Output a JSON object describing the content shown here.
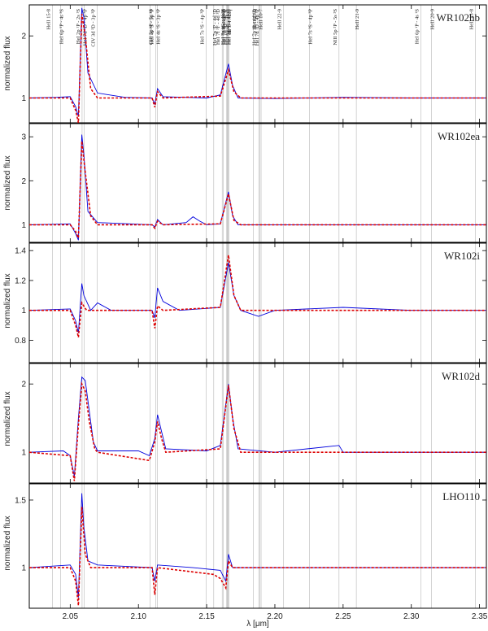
{
  "figure": {
    "x_axis_label": "λ [μm]",
    "y_axis_label": "normalized flux",
    "x_ticks": [
      "2.05",
      "2.10",
      "2.15",
      "2.20",
      "2.25",
      "2.30",
      "2.35"
    ]
  },
  "line_ids": [
    {
      "label": "HeII 15-8",
      "x": 2.037
    },
    {
      "label": "HeI 6p ³P - 4s ³S",
      "x": 2.043
    },
    {
      "label": "HeI 2p ¹P - 2s ¹S",
      "x": 2.0587
    },
    {
      "label": "HeI 7d ³D - 4p ³P",
      "x": 2.0602
    },
    {
      "label": "CIV 3d ²D - 3p ²P",
      "x": 2.0698
    },
    {
      "label": "CIII 5p ¹P - 5s ¹S",
      "x": 2.1084
    },
    {
      "label": "HeI 4s ³S - 3p ³P",
      "x": 2.1126
    },
    {
      "label": "HeI 4s ¹S - 3p ¹P",
      "x": 2.1138
    },
    {
      "label": "HeI 7s ³S - 4p ³P",
      "x": 2.1497
    },
    {
      "label": "HeI 7p ¹P - 4d ¹D",
      "x": 2.1552
    },
    {
      "label": "HeI 7f ³F - 4d ³D",
      "x": 2.1614
    },
    {
      "label": "HeI 7f ¹F - 4d ¹D",
      "x": 2.1623
    },
    {
      "label": "HeI 7g ³G - 4f ³F",
      "x": 2.1647
    },
    {
      "label": "HeI 7g ¹G - 4f ¹F",
      "x": 2.1652
    },
    {
      "label": "HeII 14-8",
      "x": 2.1653
    },
    {
      "label": "HeI 7d ³D - 4f ³F",
      "x": 2.1658
    },
    {
      "label": "HeI 7d ¹D - 4f ¹F",
      "x": 2.1662
    },
    {
      "label": "HI 7-4 / Brγ",
      "x": 2.1661
    },
    {
      "label": "HeII 23-9",
      "x": 2.1882
    },
    {
      "label": "HeI 7p ¹P - 4d ¹D",
      "x": 2.1843
    },
    {
      "label": "HeI 7d ¹D - 4p ¹P",
      "x": 2.1899
    },
    {
      "label": "HeII 10-7",
      "x": 2.1891
    },
    {
      "label": "HeII 22-9",
      "x": 2.2064
    },
    {
      "label": "HeI 7s ³S - 4p ³P",
      "x": 2.2253
    },
    {
      "label": "NIII 5p ²P - 5s ²S",
      "x": 2.247
    },
    {
      "label": "HeII 21-9",
      "x": 2.2597
    },
    {
      "label": "HeI 6p ¹P - 4s ¹S",
      "x": 2.3069
    },
    {
      "label": "HeII 20-9",
      "x": 2.3147
    },
    {
      "label": "HeII 13-8",
      "x": 2.347
    }
  ],
  "chart_data": [
    {
      "type": "line",
      "title": "WR102hb",
      "xlim": [
        2.02,
        2.355
      ],
      "ylim": [
        0.6,
        2.5
      ],
      "y_ticks": [
        1,
        2
      ],
      "series": [
        {
          "color": "#0000dd",
          "values": [
            [
              2.02,
              1.0
            ],
            [
              2.04,
              1.01
            ],
            [
              2.05,
              1.02
            ],
            [
              2.054,
              0.86
            ],
            [
              2.056,
              0.7
            ],
            [
              2.0585,
              2.45
            ],
            [
              2.06,
              2.3
            ],
            [
              2.063,
              1.4
            ],
            [
              2.07,
              1.08
            ],
            [
              2.09,
              1.01
            ],
            [
              2.11,
              1.0
            ],
            [
              2.112,
              0.9
            ],
            [
              2.114,
              1.15
            ],
            [
              2.118,
              1.02
            ],
            [
              2.15,
              1.0
            ],
            [
              2.16,
              1.05
            ],
            [
              2.166,
              1.55
            ],
            [
              2.169,
              1.2
            ],
            [
              2.173,
              1.0
            ],
            [
              2.2,
              0.99
            ],
            [
              2.25,
              1.01
            ],
            [
              2.3,
              1.0
            ],
            [
              2.355,
              1.0
            ]
          ]
        },
        {
          "color": "#dd0000",
          "dashed": true,
          "values": [
            [
              2.02,
              1.0
            ],
            [
              2.05,
              1.0
            ],
            [
              2.054,
              0.8
            ],
            [
              2.056,
              0.6
            ],
            [
              2.0585,
              2.35
            ],
            [
              2.061,
              2.0
            ],
            [
              2.065,
              1.15
            ],
            [
              2.07,
              1.0
            ],
            [
              2.11,
              1.0
            ],
            [
              2.112,
              0.85
            ],
            [
              2.114,
              1.1
            ],
            [
              2.118,
              1.0
            ],
            [
              2.16,
              1.03
            ],
            [
              2.166,
              1.45
            ],
            [
              2.17,
              1.1
            ],
            [
              2.175,
              1.0
            ],
            [
              2.355,
              1.0
            ]
          ]
        }
      ]
    },
    {
      "type": "line",
      "title": "WR102ea",
      "xlim": [
        2.02,
        2.355
      ],
      "ylim": [
        0.6,
        3.3
      ],
      "y_ticks": [
        1,
        2,
        3
      ],
      "series": [
        {
          "color": "#0000dd",
          "values": [
            [
              2.02,
              1.0
            ],
            [
              2.05,
              1.02
            ],
            [
              2.054,
              0.8
            ],
            [
              2.056,
              0.65
            ],
            [
              2.0585,
              3.05
            ],
            [
              2.06,
              2.6
            ],
            [
              2.063,
              1.3
            ],
            [
              2.07,
              1.05
            ],
            [
              2.11,
              1.0
            ],
            [
              2.112,
              0.95
            ],
            [
              2.114,
              1.12
            ],
            [
              2.118,
              1.0
            ],
            [
              2.135,
              1.05
            ],
            [
              2.14,
              1.18
            ],
            [
              2.145,
              1.08
            ],
            [
              2.15,
              1.0
            ],
            [
              2.16,
              1.02
            ],
            [
              2.166,
              1.75
            ],
            [
              2.169,
              1.2
            ],
            [
              2.173,
              1.0
            ],
            [
              2.25,
              1.0
            ],
            [
              2.3,
              1.0
            ],
            [
              2.355,
              1.0
            ]
          ]
        },
        {
          "color": "#dd0000",
          "dashed": true,
          "values": [
            [
              2.02,
              1.0
            ],
            [
              2.05,
              1.0
            ],
            [
              2.054,
              0.85
            ],
            [
              2.056,
              0.7
            ],
            [
              2.0585,
              2.9
            ],
            [
              2.061,
              2.2
            ],
            [
              2.065,
              1.2
            ],
            [
              2.07,
              1.0
            ],
            [
              2.11,
              1.0
            ],
            [
              2.112,
              0.92
            ],
            [
              2.114,
              1.08
            ],
            [
              2.118,
              1.0
            ],
            [
              2.16,
              1.02
            ],
            [
              2.166,
              1.7
            ],
            [
              2.17,
              1.1
            ],
            [
              2.175,
              1.0
            ],
            [
              2.355,
              1.0
            ]
          ]
        }
      ]
    },
    {
      "type": "line",
      "title": "WR102i",
      "xlim": [
        2.02,
        2.355
      ],
      "ylim": [
        0.65,
        1.45
      ],
      "y_ticks": [
        0.8,
        1.0,
        1.2,
        1.4
      ],
      "series": [
        {
          "color": "#0000dd",
          "values": [
            [
              2.02,
              1.0
            ],
            [
              2.05,
              1.01
            ],
            [
              2.054,
              0.93
            ],
            [
              2.056,
              0.85
            ],
            [
              2.0585,
              1.18
            ],
            [
              2.06,
              1.1
            ],
            [
              2.065,
              1.0
            ],
            [
              2.07,
              1.05
            ],
            [
              2.08,
              1.0
            ],
            [
              2.11,
              1.0
            ],
            [
              2.112,
              0.95
            ],
            [
              2.114,
              1.15
            ],
            [
              2.118,
              1.06
            ],
            [
              2.13,
              1.0
            ],
            [
              2.16,
              1.02
            ],
            [
              2.166,
              1.32
            ],
            [
              2.17,
              1.1
            ],
            [
              2.175,
              1.0
            ],
            [
              2.188,
              0.96
            ],
            [
              2.2,
              1.0
            ],
            [
              2.25,
              1.02
            ],
            [
              2.3,
              1.0
            ],
            [
              2.355,
              1.0
            ]
          ]
        },
        {
          "color": "#dd0000",
          "dashed": true,
          "values": [
            [
              2.02,
              1.0
            ],
            [
              2.05,
              1.0
            ],
            [
              2.054,
              0.9
            ],
            [
              2.056,
              0.82
            ],
            [
              2.0585,
              1.05
            ],
            [
              2.062,
              1.0
            ],
            [
              2.11,
              1.0
            ],
            [
              2.112,
              0.88
            ],
            [
              2.114,
              1.03
            ],
            [
              2.118,
              1.0
            ],
            [
              2.16,
              1.02
            ],
            [
              2.166,
              1.37
            ],
            [
              2.17,
              1.1
            ],
            [
              2.175,
              1.0
            ],
            [
              2.355,
              1.0
            ]
          ]
        }
      ]
    },
    {
      "type": "line",
      "title": "WR102d",
      "xlim": [
        2.02,
        2.355
      ],
      "ylim": [
        0.55,
        2.3
      ],
      "y_ticks": [
        1,
        2
      ],
      "series": [
        {
          "color": "#0000dd",
          "values": [
            [
              2.02,
              1.0
            ],
            [
              2.045,
              1.02
            ],
            [
              2.05,
              0.95
            ],
            [
              2.053,
              0.65
            ],
            [
              2.056,
              1.5
            ],
            [
              2.0585,
              2.1
            ],
            [
              2.061,
              2.05
            ],
            [
              2.064,
              1.6
            ],
            [
              2.067,
              1.15
            ],
            [
              2.07,
              1.02
            ],
            [
              2.1,
              1.02
            ],
            [
              2.108,
              0.95
            ],
            [
              2.112,
              1.2
            ],
            [
              2.114,
              1.55
            ],
            [
              2.117,
              1.3
            ],
            [
              2.12,
              1.05
            ],
            [
              2.15,
              1.02
            ],
            [
              2.16,
              1.1
            ],
            [
              2.166,
              2.0
            ],
            [
              2.169,
              1.5
            ],
            [
              2.173,
              1.05
            ],
            [
              2.2,
              1.0
            ],
            [
              2.247,
              1.1
            ],
            [
              2.25,
              1.0
            ],
            [
              2.3,
              1.0
            ],
            [
              2.355,
              1.0
            ]
          ]
        },
        {
          "color": "#dd0000",
          "dashed": true,
          "values": [
            [
              2.02,
              1.0
            ],
            [
              2.05,
              0.95
            ],
            [
              2.053,
              0.58
            ],
            [
              2.056,
              1.4
            ],
            [
              2.0585,
              2.0
            ],
            [
              2.061,
              1.9
            ],
            [
              2.064,
              1.45
            ],
            [
              2.068,
              1.05
            ],
            [
              2.07,
              1.0
            ],
            [
              2.108,
              0.88
            ],
            [
              2.112,
              1.15
            ],
            [
              2.114,
              1.45
            ],
            [
              2.117,
              1.2
            ],
            [
              2.12,
              1.0
            ],
            [
              2.16,
              1.05
            ],
            [
              2.166,
              1.98
            ],
            [
              2.17,
              1.35
            ],
            [
              2.175,
              1.0
            ],
            [
              2.355,
              1.0
            ]
          ]
        }
      ]
    },
    {
      "type": "line",
      "title": "LHO110",
      "xlim": [
        2.02,
        2.355
      ],
      "ylim": [
        0.7,
        1.62
      ],
      "y_ticks": [
        1.0,
        1.5
      ],
      "series": [
        {
          "color": "#0000dd",
          "values": [
            [
              2.02,
              1.0
            ],
            [
              2.05,
              1.02
            ],
            [
              2.054,
              0.95
            ],
            [
              2.056,
              0.78
            ],
            [
              2.0585,
              1.55
            ],
            [
              2.06,
              1.3
            ],
            [
              2.063,
              1.05
            ],
            [
              2.07,
              1.02
            ],
            [
              2.11,
              1.0
            ],
            [
              2.112,
              0.9
            ],
            [
              2.114,
              1.02
            ],
            [
              2.14,
              1.0
            ],
            [
              2.16,
              0.98
            ],
            [
              2.164,
              0.9
            ],
            [
              2.166,
              1.1
            ],
            [
              2.169,
              1.0
            ],
            [
              2.2,
              1.0
            ],
            [
              2.25,
              1.0
            ],
            [
              2.3,
              1.0
            ],
            [
              2.355,
              1.0
            ]
          ]
        },
        {
          "color": "#dd0000",
          "dashed": true,
          "values": [
            [
              2.02,
              1.0
            ],
            [
              2.05,
              1.0
            ],
            [
              2.054,
              0.9
            ],
            [
              2.056,
              0.72
            ],
            [
              2.0585,
              1.45
            ],
            [
              2.061,
              1.1
            ],
            [
              2.065,
              1.0
            ],
            [
              2.11,
              1.0
            ],
            [
              2.112,
              0.8
            ],
            [
              2.114,
              1.0
            ],
            [
              2.155,
              0.95
            ],
            [
              2.16,
              0.92
            ],
            [
              2.164,
              0.85
            ],
            [
              2.166,
              1.05
            ],
            [
              2.169,
              1.0
            ],
            [
              2.355,
              1.0
            ]
          ]
        }
      ]
    }
  ]
}
